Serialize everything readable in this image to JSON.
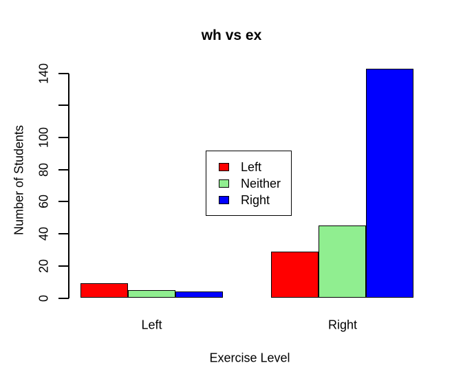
{
  "chart_data": {
    "type": "bar",
    "grouped": true,
    "title": "wh vs ex",
    "xlabel": "Exercise Level",
    "ylabel": "Number of Students",
    "categories": [
      "Left",
      "Right"
    ],
    "series": [
      {
        "name": "Left",
        "color": "#FF0000",
        "values": [
          9,
          29
        ]
      },
      {
        "name": "Neither",
        "color": "#90EE90",
        "values": [
          5,
          45
        ]
      },
      {
        "name": "Right",
        "color": "#0000FF",
        "values": [
          4,
          143
        ]
      }
    ],
    "ylim": [
      0,
      140
    ],
    "yticks": [
      0,
      20,
      40,
      60,
      80,
      100,
      120,
      140
    ],
    "ytick_labels": [
      "0",
      "20",
      "40",
      "60",
      "80",
      "100",
      "",
      "140"
    ],
    "grid": false,
    "legend_position": "center",
    "bar_border_color": "#000000",
    "axis_color": "#000000",
    "background_color": "#FFFFFF"
  }
}
